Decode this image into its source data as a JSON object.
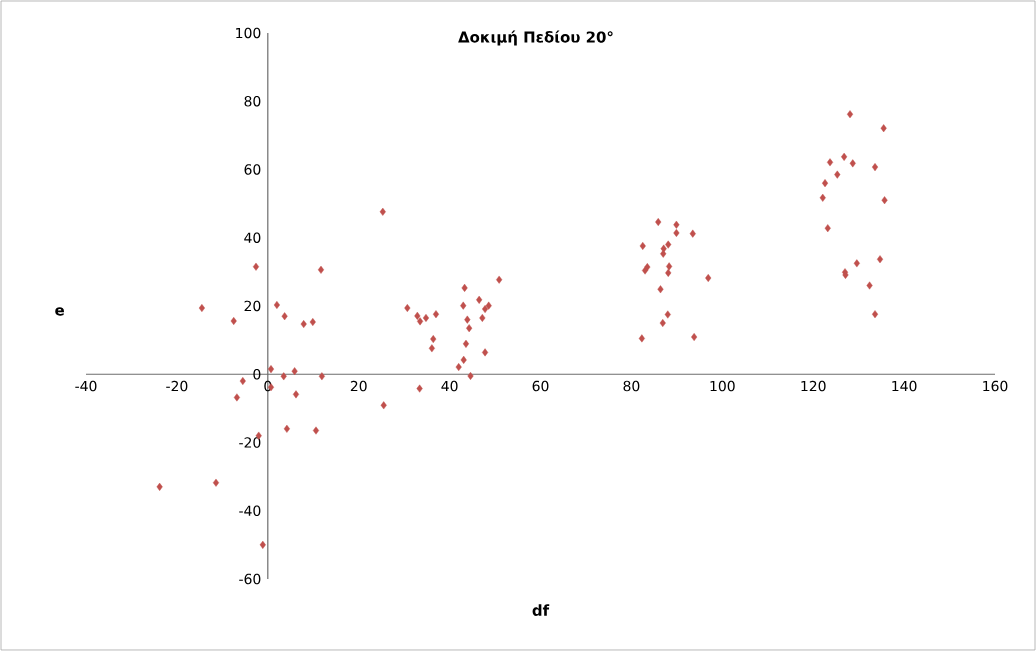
{
  "chart_data": {
    "type": "scatter",
    "title": "Δοκιμή Πεδίου 20°",
    "xlabel": "df",
    "ylabel": "e",
    "xlim": [
      -40,
      160
    ],
    "xticks": [
      -40,
      -20,
      0,
      20,
      40,
      60,
      80,
      100,
      120,
      140,
      160
    ],
    "ylim": [
      -60,
      100
    ],
    "yticks": [
      -60,
      -40,
      -20,
      0,
      20,
      40,
      60,
      80,
      100
    ],
    "grid": false,
    "legend": false,
    "marker": "diamond",
    "series": [
      {
        "color": "#c0504d",
        "x": [
          -23.8,
          -14.5,
          -11.4,
          -7.5,
          -5.5,
          -6.8,
          -2.6,
          -2,
          -1.1,
          0.7,
          0.7,
          2,
          3.7,
          3.5,
          4.2,
          5.9,
          6.2,
          7.9,
          9.9,
          10.6,
          11.7,
          11.9,
          25.3,
          25.5,
          30.7,
          32.9,
          33.5,
          34.8,
          37.0,
          36.4,
          36.1,
          33.4,
          43.3,
          43.0,
          43.9,
          44.3,
          43.6,
          43.1,
          42.0,
          44.6,
          46.5,
          48.6,
          47.8,
          47.2,
          47.8,
          50.9,
          85.9,
          89.9,
          89.9,
          93.5,
          82.5,
          88.1,
          87.1,
          87.0,
          83.5,
          83.0,
          88.3,
          88.1,
          96.9,
          86.4,
          88.0,
          86.9,
          82.3,
          93.8,
          128.1,
          135.5,
          126.8,
          123.7,
          128.7,
          133.6,
          125.3,
          122.6,
          122.1,
          135.7,
          123.2,
          134.7,
          129.6,
          127.0,
          127.1,
          132.4,
          133.6
        ],
        "values": [
          -33,
          19.4,
          -31.8,
          15.6,
          -2,
          -6.8,
          31.5,
          -18,
          -50,
          1.5,
          -3.8,
          20.3,
          17,
          -0.6,
          -16,
          0.9,
          -5.9,
          14.7,
          15.3,
          -16.5,
          30.6,
          -0.6,
          47.6,
          -9.1,
          19.4,
          17.1,
          15.5,
          16.5,
          17.6,
          10.3,
          7.6,
          -4.2,
          25.3,
          20.1,
          16.0,
          13.5,
          8.9,
          4.2,
          2.1,
          -0.5,
          21.8,
          20.1,
          19.1,
          16.5,
          6.4,
          27.7,
          44.6,
          43.8,
          41.4,
          41.2,
          37.6,
          38.0,
          36.8,
          35.3,
          31.4,
          30.4,
          31.6,
          29.7,
          28.2,
          24.9,
          17.5,
          15.0,
          10.5,
          10.9,
          76.2,
          72.1,
          63.7,
          62.1,
          61.8,
          60.7,
          58.5,
          56.0,
          51.7,
          51.0,
          42.8,
          33.7,
          32.5,
          29.9,
          29.1,
          26.0,
          17.6
        ]
      }
    ]
  }
}
